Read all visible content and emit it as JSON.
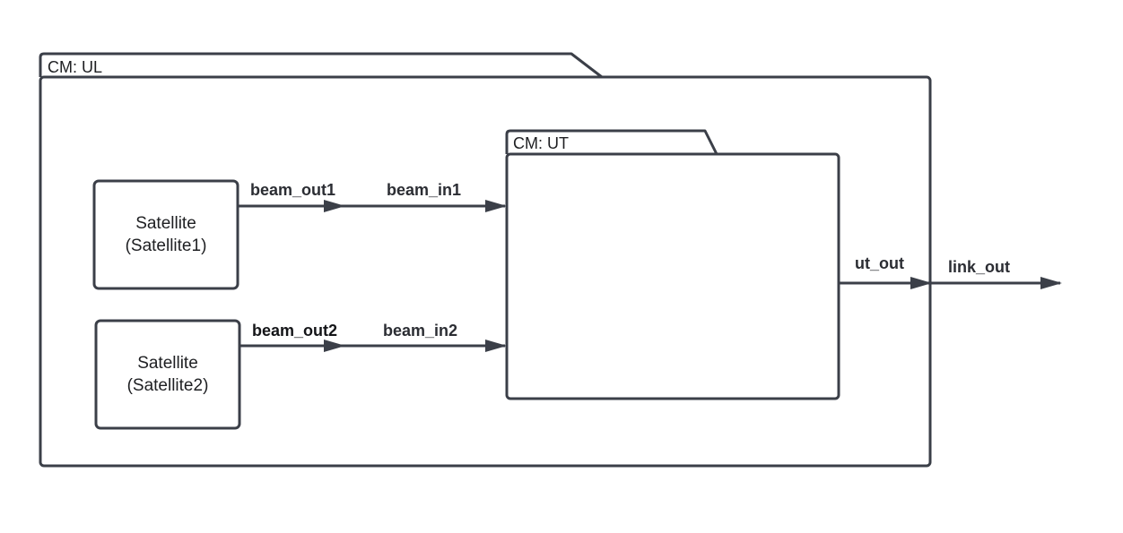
{
  "packages": {
    "ul": {
      "label": "CM: UL"
    },
    "ut": {
      "label": "CM: UT"
    }
  },
  "blocks": {
    "satellite1": {
      "line1": "Satellite",
      "line2": "(Satellite1)"
    },
    "satellite2": {
      "line1": "Satellite",
      "line2": "(Satellite2)"
    }
  },
  "ports": {
    "beam_out1": "beam_out1",
    "beam_in1": "beam_in1",
    "beam_out2": "beam_out2",
    "beam_in2": "beam_in2",
    "ut_out": "ut_out",
    "link_out": "link_out"
  },
  "colors": {
    "stroke": "#3b3f48",
    "text": "#1e1f22"
  }
}
